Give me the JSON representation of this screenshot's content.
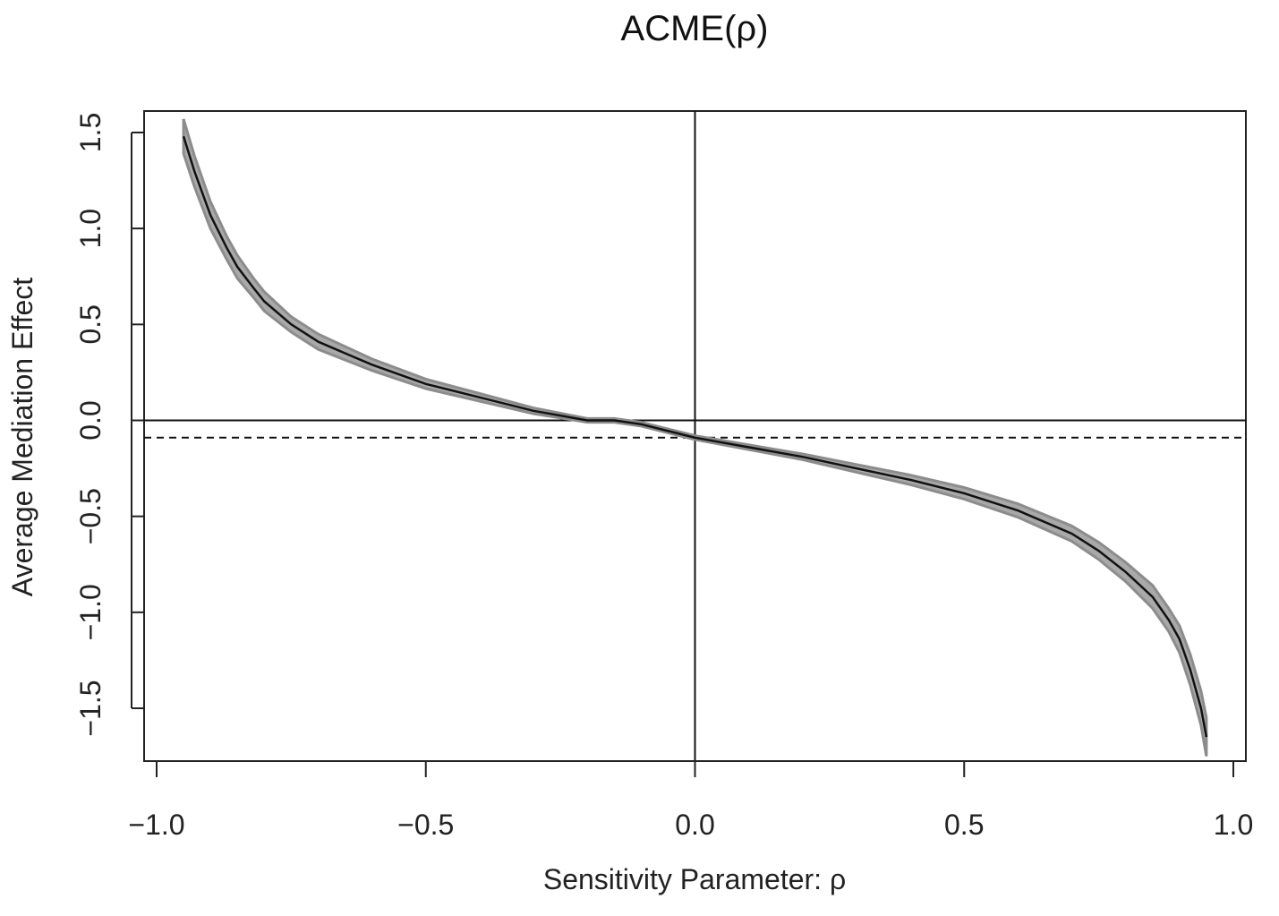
{
  "chart_data": {
    "type": "line",
    "title": "ACME(ρ)",
    "xlabel": "Sensitivity Parameter: ρ",
    "ylabel": "Average Mediation Effect",
    "xlim": [
      -1.0,
      1.0
    ],
    "ylim": [
      -1.7,
      1.6
    ],
    "x_ticks": [
      -1.0,
      -0.5,
      0.0,
      0.5,
      1.0
    ],
    "x_tick_labels": [
      "−1.0",
      "−0.5",
      "0.0",
      "0.5",
      "1.0"
    ],
    "y_ticks": [
      -1.5,
      -1.0,
      -0.5,
      0.0,
      0.5,
      1.0,
      1.5
    ],
    "y_tick_labels": [
      "−1.5",
      "−1.0",
      "−0.5",
      "0.0",
      "0.5",
      "1.0",
      "1.5"
    ],
    "grid": false,
    "reference_lines": {
      "horizontal_solid_y": 0.0,
      "vertical_solid_x": 0.0,
      "horizontal_dashed_y": -0.09
    },
    "series": [
      {
        "x": [
          -0.95,
          -0.93,
          -0.9,
          -0.87,
          -0.85,
          -0.82,
          -0.8,
          -0.75,
          -0.7,
          -0.65,
          -0.6,
          -0.5,
          -0.4,
          -0.3,
          -0.2,
          -0.15,
          -0.1,
          0.0,
          0.1,
          0.2,
          0.3,
          0.4,
          0.5,
          0.6,
          0.7,
          0.75,
          0.8,
          0.85,
          0.88,
          0.9,
          0.92,
          0.94,
          0.95
        ],
        "y": [
          1.48,
          1.3,
          1.07,
          0.9,
          0.8,
          0.69,
          0.62,
          0.5,
          0.41,
          0.35,
          0.29,
          0.19,
          0.12,
          0.05,
          0.0,
          0.0,
          -0.02,
          -0.09,
          -0.14,
          -0.19,
          -0.25,
          -0.31,
          -0.38,
          -0.47,
          -0.59,
          -0.68,
          -0.79,
          -0.92,
          -1.04,
          -1.14,
          -1.3,
          -1.5,
          -1.65
        ],
        "ci_half_width": [
          0.09,
          0.08,
          0.07,
          0.06,
          0.06,
          0.05,
          0.05,
          0.04,
          0.04,
          0.035,
          0.03,
          0.025,
          0.02,
          0.015,
          0.01,
          0.01,
          0.01,
          0.01,
          0.012,
          0.015,
          0.02,
          0.025,
          0.03,
          0.035,
          0.04,
          0.045,
          0.05,
          0.06,
          0.06,
          0.07,
          0.08,
          0.09,
          0.1
        ]
      }
    ],
    "colors": {
      "line": "#111111",
      "ci": "#8c8c8c",
      "axes": "#222222"
    }
  }
}
